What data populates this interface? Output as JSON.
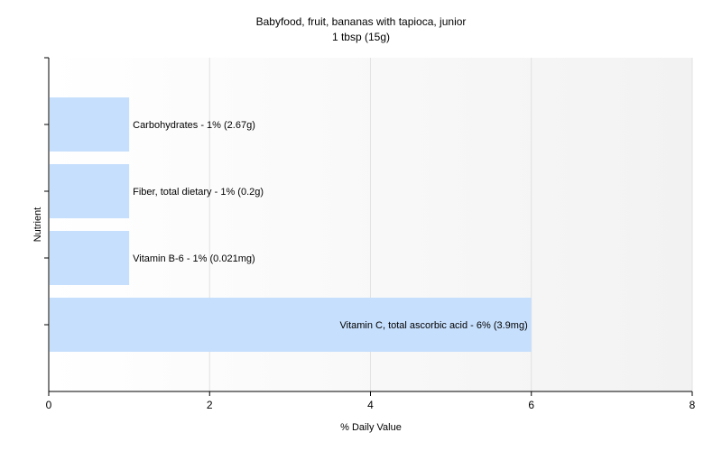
{
  "chart_data": {
    "type": "bar",
    "orientation": "horizontal",
    "title": "Babyfood, fruit, bananas with tapioca, junior",
    "subtitle": "1 tbsp (15g)",
    "xlabel": "% Daily Value",
    "ylabel": "Nutrient",
    "xlim": [
      0,
      8
    ],
    "xticks": [
      "0",
      "2",
      "4",
      "6",
      "8"
    ],
    "grid": true,
    "bar_color": "#c6dffd",
    "categories": [
      "Carbohydrates",
      "Fiber, total dietary",
      "Vitamin B-6",
      "Vitamin C, total ascorbic acid"
    ],
    "values": [
      1,
      1,
      1,
      6
    ],
    "data_labels": [
      "Carbohydrates - 1% (2.67g)",
      "Fiber, total dietary - 1% (0.2g)",
      "Vitamin B-6 - 1% (0.021mg)",
      "Vitamin C, total ascorbic acid - 6% (3.9mg)"
    ]
  }
}
